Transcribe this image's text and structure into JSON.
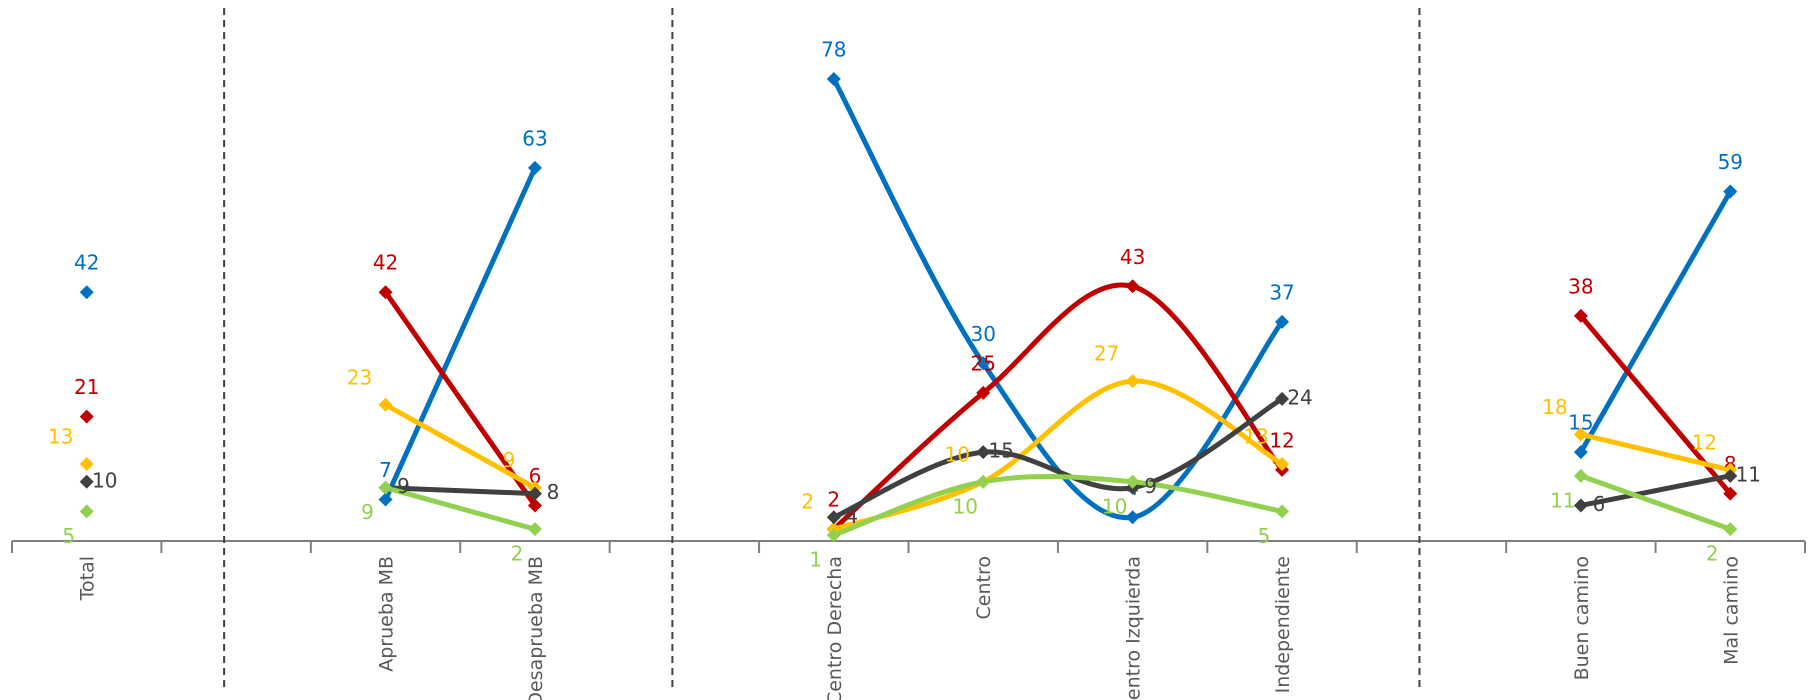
{
  "chart_data": {
    "type": "line",
    "categories": [
      "Total",
      null,
      "Aprueba MB",
      "Desaprueba MB",
      null,
      "Centro Derecha",
      "Centro",
      "Centro Izquierda",
      "Independiente",
      null,
      "Buen camino",
      "Mal camino"
    ],
    "series": [
      {
        "color": "#0070c0",
        "values": [
          42,
          null,
          7,
          63,
          null,
          78,
          30,
          4,
          37,
          null,
          15,
          59
        ]
      },
      {
        "color": "#c00000",
        "values": [
          21,
          null,
          42,
          6,
          null,
          2,
          25,
          43,
          12,
          null,
          38,
          8
        ]
      },
      {
        "color": "#ffc000",
        "values": [
          13,
          null,
          23,
          9,
          null,
          2,
          10,
          27,
          13,
          null,
          18,
          12
        ]
      },
      {
        "color": "#404040",
        "values": [
          10,
          null,
          9,
          8,
          null,
          4,
          15,
          9,
          24,
          null,
          6,
          11
        ]
      },
      {
        "color": "#92d050",
        "values": [
          5,
          null,
          9,
          2,
          null,
          1,
          10,
          10,
          5,
          null,
          11,
          2
        ]
      }
    ],
    "smooth": true
  }
}
